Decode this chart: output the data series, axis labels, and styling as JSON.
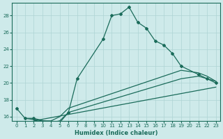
{
  "title": "",
  "xlabel": "Humidex (Indice chaleur)",
  "ylabel": "",
  "bg_color": "#ceeaea",
  "grid_color": "#aed4d4",
  "line_color": "#1a6b5a",
  "xlim": [
    -0.5,
    23.5
  ],
  "ylim": [
    15.5,
    29.5
  ],
  "xticks": [
    0,
    1,
    2,
    3,
    4,
    5,
    6,
    7,
    8,
    9,
    10,
    11,
    12,
    13,
    14,
    15,
    16,
    17,
    18,
    19,
    20,
    21,
    22,
    23
  ],
  "yticks": [
    16,
    18,
    20,
    22,
    24,
    26,
    28
  ],
  "main_x": [
    0,
    1,
    2,
    3,
    4,
    5,
    6,
    7,
    10,
    11,
    12,
    13,
    14,
    15,
    16,
    17,
    18,
    19,
    21,
    22,
    23
  ],
  "main_y": [
    17,
    15.8,
    15.8,
    15.0,
    15.0,
    15.3,
    16.5,
    20.5,
    25.2,
    28.0,
    28.2,
    29.0,
    27.2,
    26.5,
    25.0,
    24.5,
    23.5,
    22.0,
    21.0,
    20.5,
    20.0
  ],
  "line1_x": [
    1,
    3,
    4,
    5,
    6,
    19,
    21,
    22,
    23
  ],
  "line1_y": [
    15.8,
    15.5,
    15.5,
    16.0,
    17.0,
    21.5,
    21.2,
    20.8,
    20.2
  ],
  "line2_x": [
    2,
    4,
    5,
    6,
    19,
    21,
    23
  ],
  "line2_y": [
    15.8,
    15.3,
    15.5,
    16.5,
    20.5,
    20.8,
    20.2
  ],
  "line3_x": [
    2,
    23
  ],
  "line3_y": [
    15.5,
    19.5
  ]
}
